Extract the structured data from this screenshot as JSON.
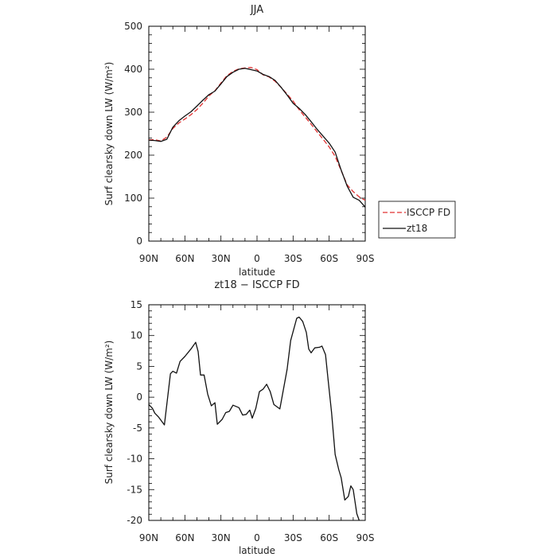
{
  "chart_data": [
    {
      "type": "line",
      "title": "JJA",
      "xlabel": "latitude",
      "ylabel": "Surf clearsky down LW (W/m²)",
      "x": [
        -90,
        -85,
        -80,
        -75,
        -70,
        -65,
        -60,
        -55,
        -50,
        -45,
        -40,
        -35,
        -30,
        -25,
        -20,
        -15,
        -10,
        -5,
        0,
        5,
        10,
        15,
        20,
        25,
        30,
        35,
        40,
        45,
        50,
        55,
        60,
        65,
        70,
        75,
        80,
        85,
        90
      ],
      "xticks": [
        "90N",
        "60N",
        "30N",
        "0",
        "30S",
        "60S",
        "90S"
      ],
      "xtick_values": [
        -90,
        -60,
        -30,
        0,
        30,
        60,
        90
      ],
      "xlim": [
        -90,
        90
      ],
      "ylim": [
        0,
        500
      ],
      "yticks": [
        0,
        100,
        200,
        300,
        400,
        500
      ],
      "grid": false,
      "legend_position": "right",
      "series": [
        {
          "name": "ISCCP FD",
          "color": "#e03030",
          "dash": "dashed",
          "values": [
            236,
            236,
            233,
            242,
            262,
            275,
            284,
            294,
            306,
            321,
            338,
            350,
            368,
            385,
            395,
            401,
            403,
            404,
            399,
            387,
            382,
            372,
            358,
            342,
            326,
            306,
            289,
            272,
            254,
            237,
            219,
            197,
            164,
            131,
            115,
            103,
            95
          ]
        },
        {
          "name": "zt18",
          "color": "#111111",
          "dash": "solid",
          "values": [
            235,
            234,
            232,
            237,
            265,
            280,
            291,
            301,
            314,
            328,
            341,
            349,
            366,
            383,
            393,
            400,
            402,
            399,
            396,
            388,
            383,
            374,
            358,
            340,
            321,
            309,
            295,
            278,
            260,
            244,
            228,
            207,
            165,
            128,
            102,
            95,
            79
          ]
        }
      ]
    },
    {
      "type": "line",
      "title": "zt18 − ISCCP FD",
      "xlabel": "latitude",
      "ylabel": "Surf clearsky down LW (W/m²)",
      "xticks": [
        "90N",
        "60N",
        "30N",
        "0",
        "30S",
        "60S",
        "90S"
      ],
      "xtick_values": [
        -90,
        -60,
        -30,
        0,
        30,
        60,
        90
      ],
      "xlim": [
        -90,
        90
      ],
      "ylim": [
        -20,
        15
      ],
      "yticks": [
        -20,
        -15,
        -10,
        -5,
        0,
        5,
        10,
        15
      ],
      "grid": false,
      "series": [
        {
          "color": "#111111",
          "dash": "solid",
          "points": [
            [
              -90,
              -1.2
            ],
            [
              -87,
              -1.8
            ],
            [
              -85,
              -2.6
            ],
            [
              -82,
              -3.2
            ],
            [
              -77,
              -4.5
            ],
            [
              -72,
              3.8
            ],
            [
              -70,
              4.2
            ],
            [
              -67,
              3.9
            ],
            [
              -64,
              5.8
            ],
            [
              -60,
              6.6
            ],
            [
              -55,
              7.8
            ],
            [
              -51,
              8.9
            ],
            [
              -49,
              7.4
            ],
            [
              -47,
              3.6
            ],
            [
              -44,
              3.6
            ],
            [
              -41,
              0.5
            ],
            [
              -38,
              -1.4
            ],
            [
              -35,
              -0.9
            ],
            [
              -33,
              -4.4
            ],
            [
              -29,
              -3.6
            ],
            [
              -26,
              -2.5
            ],
            [
              -23,
              -2.3
            ],
            [
              -20,
              -1.3
            ],
            [
              -15,
              -1.7
            ],
            [
              -12,
              -2.9
            ],
            [
              -9,
              -2.8
            ],
            [
              -6,
              -2.1
            ],
            [
              -4,
              -3.4
            ],
            [
              -1,
              -1.8
            ],
            [
              2,
              0.9
            ],
            [
              5,
              1.3
            ],
            [
              8,
              2.1
            ],
            [
              11,
              0.9
            ],
            [
              14,
              -1.2
            ],
            [
              19,
              -1.9
            ],
            [
              25,
              4.5
            ],
            [
              28,
              9.2
            ],
            [
              33,
              12.8
            ],
            [
              35,
              13.0
            ],
            [
              38,
              12.3
            ],
            [
              41,
              10.5
            ],
            [
              43,
              7.8
            ],
            [
              45,
              7.2
            ],
            [
              48,
              8.0
            ],
            [
              52,
              8.1
            ],
            [
              54,
              8.3
            ],
            [
              57,
              6.9
            ],
            [
              59,
              3.0
            ],
            [
              62,
              -2.5
            ],
            [
              65,
              -9.3
            ],
            [
              68,
              -11.8
            ],
            [
              70,
              -13.1
            ],
            [
              73,
              -16.7
            ],
            [
              76,
              -16.1
            ],
            [
              78,
              -14.4
            ],
            [
              80,
              -15.0
            ],
            [
              83,
              -18.9
            ],
            [
              85,
              -20.0
            ]
          ]
        }
      ]
    }
  ]
}
